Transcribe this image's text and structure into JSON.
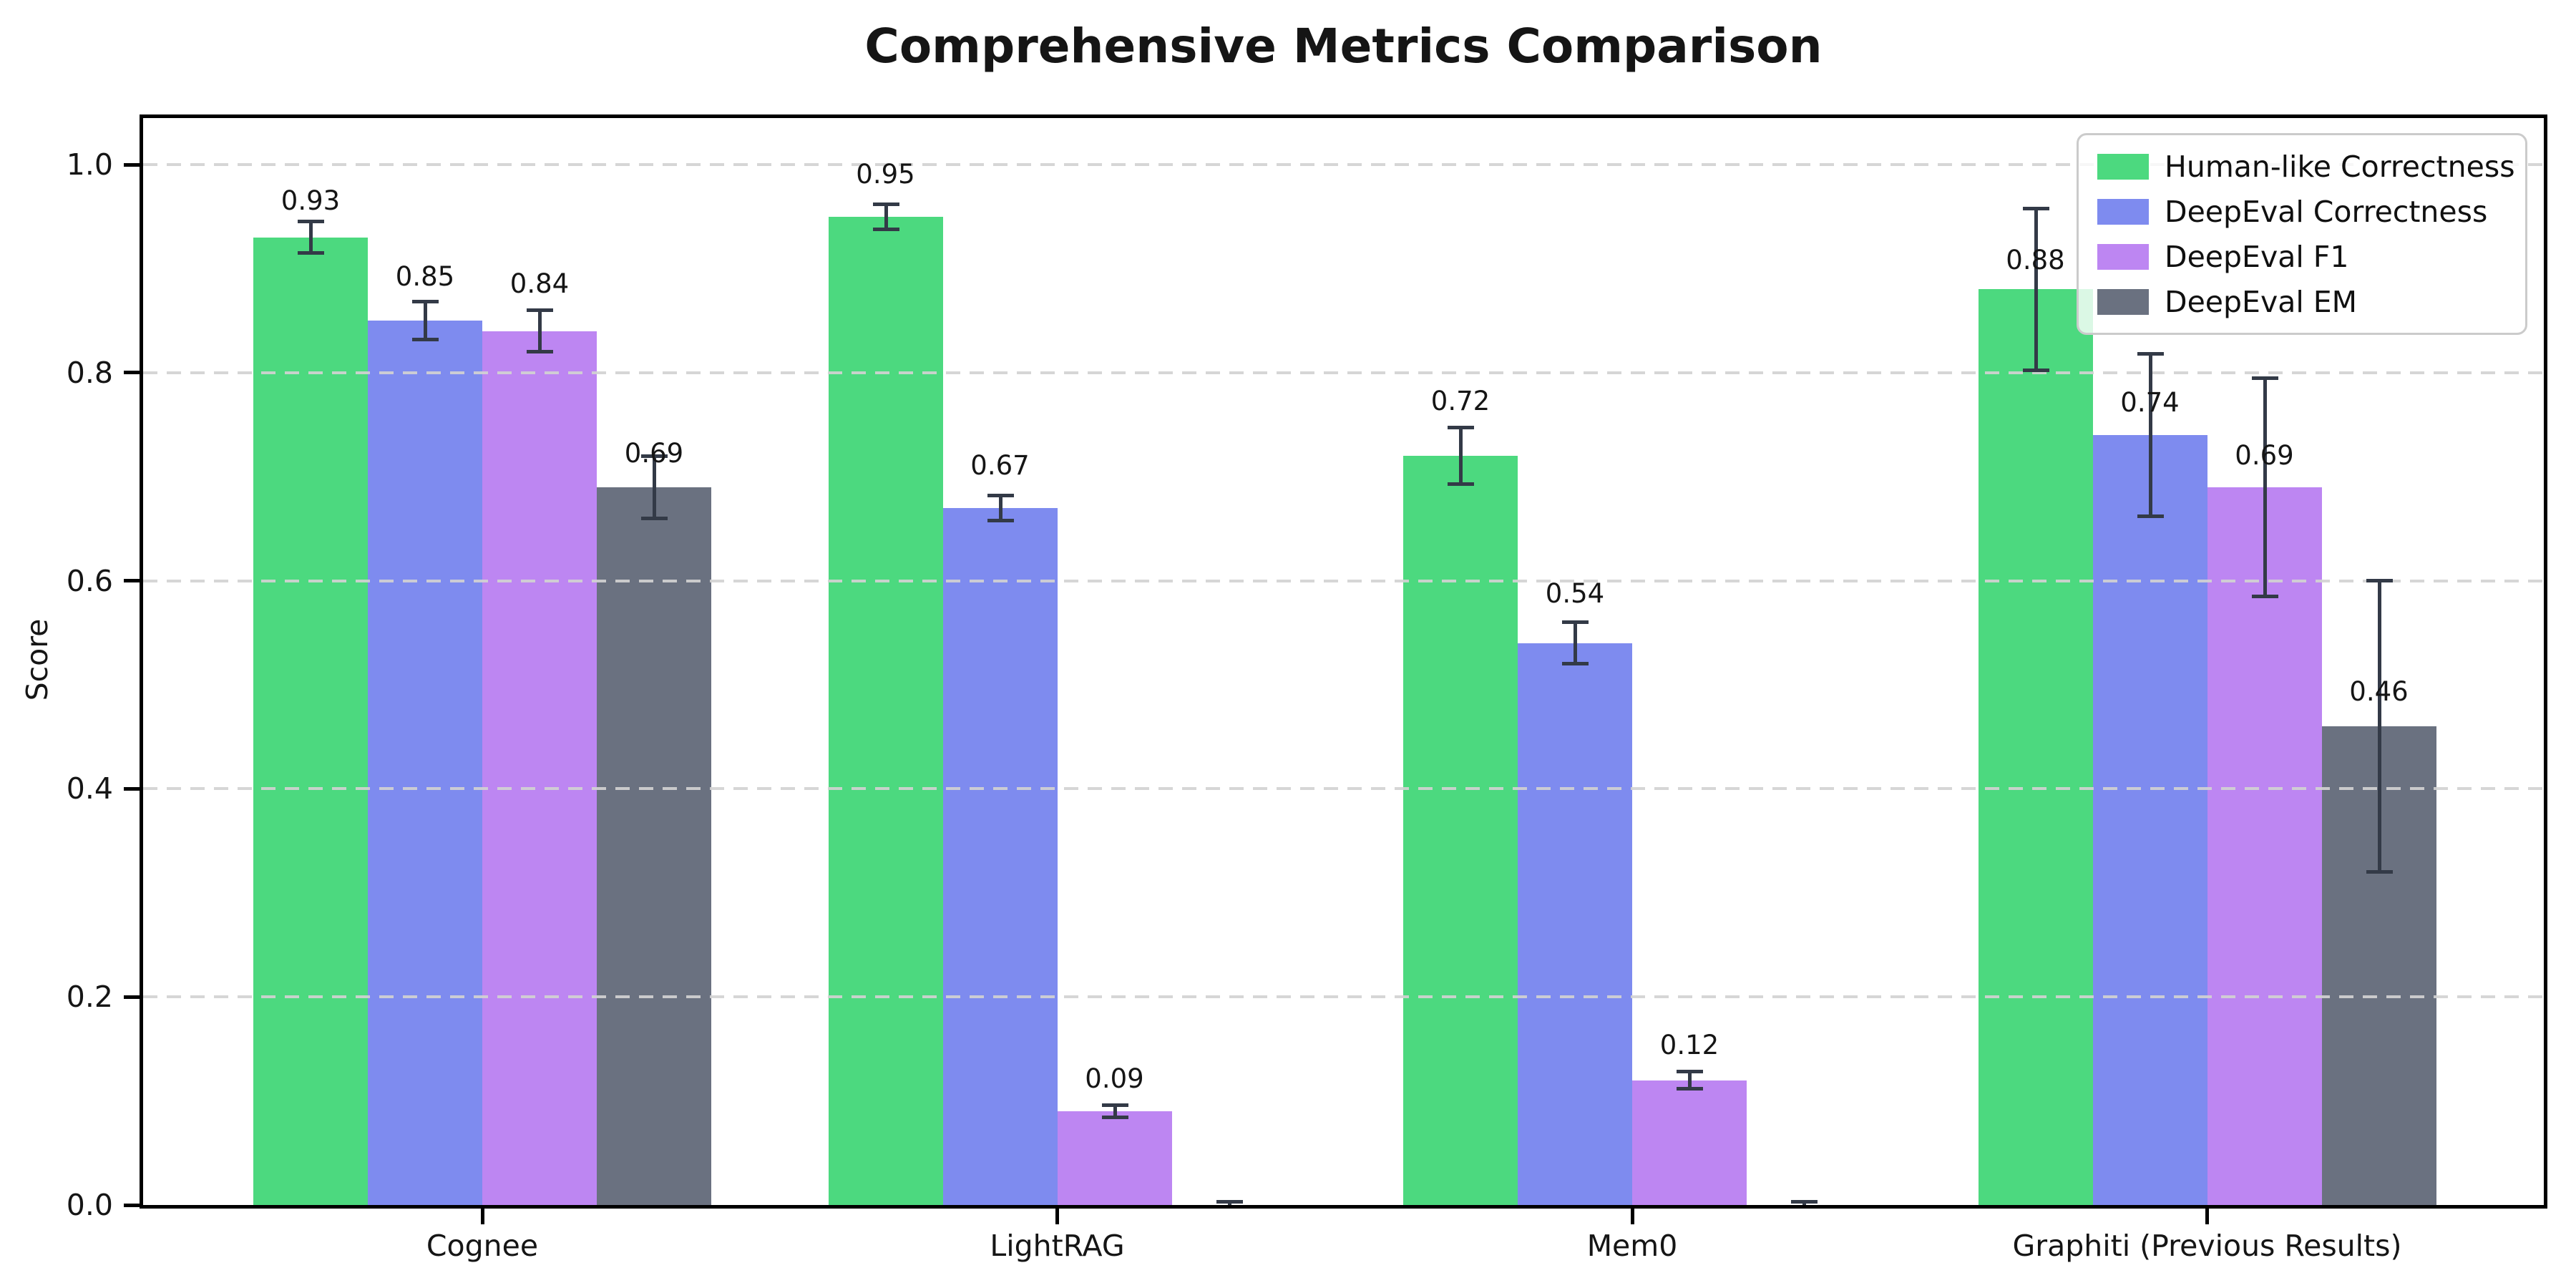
{
  "chart_data": {
    "type": "bar",
    "title": "Comprehensive Metrics Comparison",
    "ylabel": "Score",
    "xlabel": "",
    "ylim": [
      0,
      1.045
    ],
    "yticks": [
      0.0,
      0.2,
      0.4,
      0.6,
      0.8,
      1.0
    ],
    "ytick_labels": [
      "0.0",
      "0.2",
      "0.4",
      "0.6",
      "0.8",
      "1.0"
    ],
    "grid": "horizontal-dashed",
    "gridline_color": "#d2d2d2",
    "error_bar_color": "#333a47",
    "legend_position": "upper-right",
    "categories": [
      "Cognee",
      "LightRAG",
      "Mem0",
      "Graphiti (Previous Results)"
    ],
    "series": [
      {
        "name": "Human-like Correctness",
        "color": "#4cd97f",
        "values": [
          0.93,
          0.95,
          0.72,
          0.88
        ],
        "errors": [
          0.015,
          0.012,
          0.027,
          0.078
        ],
        "labels": [
          "0.93",
          "0.95",
          "0.72",
          "0.88"
        ],
        "label_y": [
          0.95,
          0.975,
          0.757,
          0.893
        ]
      },
      {
        "name": "DeepEval Correctness",
        "color": "#7e8bef",
        "values": [
          0.85,
          0.67,
          0.54,
          0.74
        ],
        "errors": [
          0.018,
          0.012,
          0.02,
          0.078
        ],
        "labels": [
          "0.85",
          "0.67",
          "0.54",
          "0.74"
        ],
        "label_y": [
          0.877,
          0.695,
          0.572,
          0.756
        ]
      },
      {
        "name": "DeepEval F1",
        "color": "#bd86f2",
        "values": [
          0.84,
          0.09,
          0.12,
          0.69
        ],
        "errors": [
          0.02,
          0.006,
          0.008,
          0.105
        ],
        "labels": [
          "0.84",
          "0.09",
          "0.12",
          "0.69"
        ],
        "label_y": [
          0.87,
          0.106,
          0.138,
          0.705
        ]
      },
      {
        "name": "DeepEval EM",
        "color": "#6a7180",
        "values": [
          0.69,
          0.0,
          0.0,
          0.46
        ],
        "errors": [
          0.03,
          0.003,
          0.003,
          0.14
        ],
        "labels": [
          "0.69",
          "",
          "",
          "0.46"
        ],
        "label_y": [
          0.707,
          null,
          null,
          0.478
        ]
      }
    ]
  }
}
